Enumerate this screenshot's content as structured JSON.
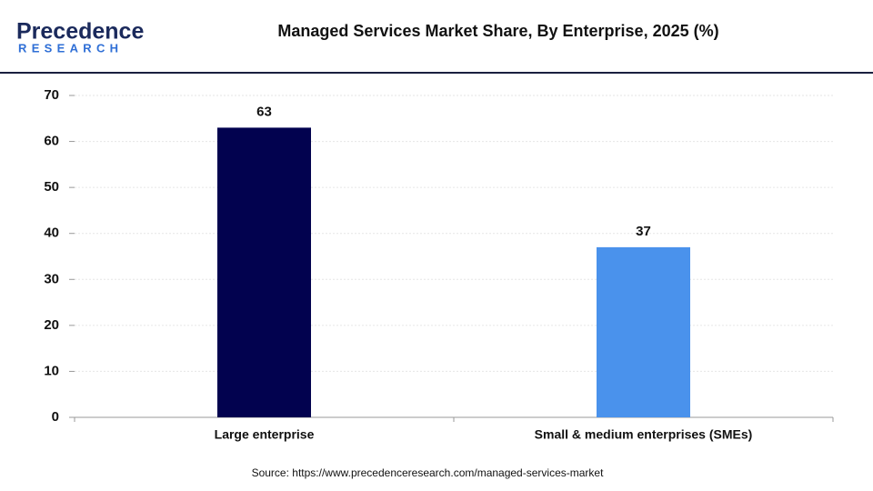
{
  "logo": {
    "name": "Precedence",
    "tagline": "RESEARCH"
  },
  "chart_data": {
    "type": "bar",
    "title": "Managed Services Market Share, By Enterprise, 2025 (%)",
    "categories": [
      "Large enterprise",
      "Small & medium enterprises (SMEs)"
    ],
    "values": [
      63,
      37
    ],
    "colors": [
      "#02024f",
      "#4a92ec"
    ],
    "ylim": [
      0,
      70
    ],
    "yticks": [
      0,
      10,
      20,
      30,
      40,
      50,
      60,
      70
    ],
    "grid": true
  },
  "source": "Source: https://www.precedenceresearch.com/managed-services-market"
}
